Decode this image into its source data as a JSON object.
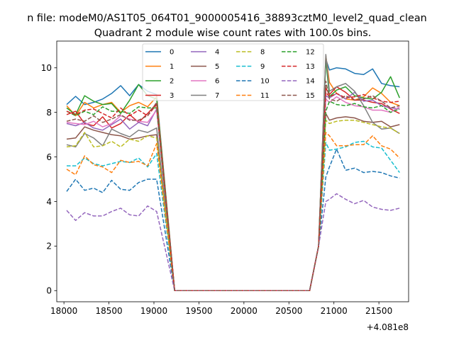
{
  "figure": {
    "suptitle": "n file: modeM0/AS1T05_064T01_9000005416_38893cztM0_level2_quad_clean",
    "title": "Quadrant 2 module wise count rates with 100.0s bins."
  },
  "chart_data": {
    "type": "line",
    "x_offset_label": "+4.081e8",
    "xlim": [
      17920,
      21830
    ],
    "ylim": [
      -0.5,
      11.2
    ],
    "xticks": [
      18000,
      18500,
      19000,
      19500,
      20000,
      20500,
      21000,
      21500
    ],
    "yticks": [
      0,
      2,
      4,
      6,
      8,
      10
    ],
    "grid": false,
    "legend": {
      "placement": "top-center",
      "columns": 4
    },
    "x": [
      18030,
      18130,
      18230,
      18330,
      18430,
      18530,
      18630,
      18730,
      18830,
      18930,
      19030,
      19230,
      20730,
      20830,
      20910,
      20950,
      21030,
      21130,
      21230,
      21330,
      21430,
      21530,
      21630,
      21730
    ],
    "series": [
      {
        "name": "0",
        "color": "#1f77b4",
        "dash": false,
        "values": [
          8.35,
          8.72,
          8.35,
          8.45,
          8.6,
          8.85,
          9.2,
          8.75,
          9.25,
          8.95,
          8.8,
          0,
          0,
          2.0,
          10.4,
          9.9,
          10.0,
          9.95,
          9.75,
          9.7,
          9.95,
          9.3,
          9.2,
          9.15
        ]
      },
      {
        "name": "1",
        "color": "#ff7f0e",
        "dash": false,
        "values": [
          8.3,
          7.85,
          8.45,
          8.2,
          8.35,
          8.45,
          8.0,
          8.3,
          8.45,
          8.25,
          8.7,
          0,
          0,
          2.0,
          10.55,
          9.35,
          8.85,
          8.6,
          8.55,
          8.7,
          9.1,
          8.85,
          8.45,
          8.3
        ]
      },
      {
        "name": "2",
        "color": "#2ca02c",
        "dash": false,
        "values": [
          8.2,
          7.9,
          8.75,
          8.5,
          8.35,
          8.4,
          7.95,
          8.55,
          9.25,
          8.75,
          8.6,
          0,
          0,
          2.0,
          10.4,
          8.7,
          9.0,
          9.15,
          8.75,
          8.65,
          8.6,
          8.9,
          9.6,
          8.65
        ]
      },
      {
        "name": "3",
        "color": "#d62728",
        "dash": false,
        "values": [
          7.9,
          8.05,
          7.5,
          7.4,
          7.8,
          7.3,
          7.5,
          7.9,
          7.55,
          7.95,
          8.4,
          0,
          0,
          2.0,
          9.1,
          8.8,
          9.15,
          8.9,
          8.55,
          8.55,
          8.45,
          8.4,
          8.15,
          7.95
        ]
      },
      {
        "name": "4",
        "color": "#9467bd",
        "dash": false,
        "values": [
          7.5,
          7.4,
          7.55,
          7.3,
          7.2,
          7.45,
          7.7,
          7.25,
          7.55,
          7.4,
          8.15,
          0,
          0,
          2.0,
          8.75,
          8.65,
          8.85,
          8.6,
          8.9,
          8.5,
          8.55,
          8.3,
          8.2,
          8.15
        ]
      },
      {
        "name": "5",
        "color": "#8c564b",
        "dash": false,
        "values": [
          6.8,
          6.85,
          7.35,
          7.2,
          7.1,
          7.0,
          6.95,
          6.8,
          6.85,
          6.95,
          7.0,
          0,
          0,
          2.0,
          7.95,
          7.65,
          7.75,
          7.8,
          7.75,
          7.6,
          7.55,
          7.6,
          7.35,
          7.45
        ]
      },
      {
        "name": "6",
        "color": "#e377c2",
        "dash": false,
        "values": [
          7.55,
          7.5,
          7.45,
          7.6,
          7.35,
          7.5,
          7.85,
          7.7,
          7.6,
          7.55,
          8.1,
          0,
          0,
          2.0,
          8.6,
          8.45,
          8.7,
          8.45,
          8.3,
          8.25,
          8.1,
          8.1,
          8.0,
          8.25
        ]
      },
      {
        "name": "7",
        "color": "#7f7f7f",
        "dash": false,
        "values": [
          6.55,
          6.45,
          7.05,
          6.85,
          6.5,
          7.25,
          7.05,
          6.9,
          7.2,
          7.1,
          7.3,
          0,
          0,
          2.0,
          10.6,
          8.95,
          9.15,
          9.3,
          8.95,
          8.3,
          7.55,
          7.25,
          7.3,
          7.05
        ]
      },
      {
        "name": "8",
        "color": "#bcbd22",
        "dash": true,
        "values": [
          6.45,
          6.5,
          7.1,
          6.45,
          6.5,
          6.7,
          6.45,
          6.8,
          6.7,
          6.95,
          6.85,
          0,
          0,
          2.0,
          7.65,
          7.5,
          7.6,
          7.65,
          7.65,
          7.55,
          7.45,
          7.35,
          7.3,
          7.05
        ]
      },
      {
        "name": "9",
        "color": "#17becf",
        "dash": true,
        "values": [
          5.6,
          5.6,
          5.95,
          5.7,
          5.6,
          5.7,
          5.8,
          5.75,
          5.95,
          5.55,
          6.15,
          0,
          0,
          2.0,
          6.65,
          6.3,
          6.35,
          6.45,
          6.65,
          6.7,
          6.45,
          6.4,
          5.85,
          5.3
        ]
      },
      {
        "name": "10",
        "color": "#1f77b4",
        "dash": true,
        "values": [
          4.45,
          5.0,
          4.5,
          4.6,
          4.4,
          4.95,
          4.55,
          4.5,
          4.85,
          5.0,
          5.0,
          0,
          0,
          2.0,
          5.1,
          5.55,
          6.35,
          5.4,
          5.5,
          5.3,
          5.35,
          5.3,
          5.15,
          5.05
        ]
      },
      {
        "name": "11",
        "color": "#ff7f0e",
        "dash": true,
        "values": [
          5.45,
          5.2,
          6.05,
          5.65,
          5.55,
          5.3,
          5.85,
          5.75,
          5.8,
          5.6,
          6.6,
          0,
          0,
          2.0,
          7.1,
          6.95,
          6.5,
          6.5,
          6.55,
          6.55,
          6.95,
          6.5,
          6.35,
          5.95
        ]
      },
      {
        "name": "12",
        "color": "#2ca02c",
        "dash": true,
        "values": [
          8.05,
          7.85,
          8.05,
          7.9,
          8.25,
          8.05,
          8.05,
          7.95,
          8.25,
          8.2,
          8.2,
          0,
          0,
          2.0,
          8.05,
          8.5,
          8.35,
          8.3,
          8.4,
          8.25,
          8.2,
          8.3,
          8.0,
          8.15
        ]
      },
      {
        "name": "13",
        "color": "#d62728",
        "dash": true,
        "values": [
          8.05,
          7.9,
          8.1,
          8.15,
          7.95,
          7.75,
          8.2,
          7.85,
          8.1,
          7.85,
          8.35,
          0,
          0,
          2.0,
          8.9,
          8.7,
          8.85,
          8.65,
          8.7,
          8.8,
          8.65,
          8.5,
          8.45,
          8.5
        ]
      },
      {
        "name": "14",
        "color": "#9467bd",
        "dash": true,
        "values": [
          3.6,
          3.15,
          3.5,
          3.35,
          3.35,
          3.55,
          3.7,
          3.4,
          3.35,
          3.8,
          3.55,
          0,
          0,
          2.0,
          4.0,
          4.1,
          4.35,
          4.1,
          3.9,
          4.05,
          3.75,
          3.65,
          3.6,
          3.7
        ]
      },
      {
        "name": "15",
        "color": "#8c564b",
        "dash": true,
        "values": [
          7.6,
          7.7,
          7.6,
          7.85,
          7.55,
          7.7,
          7.9,
          7.65,
          7.65,
          7.85,
          8.45,
          0,
          0,
          2.0,
          9.4,
          8.6,
          8.5,
          8.75,
          8.55,
          8.6,
          8.75,
          8.5,
          8.2,
          8.3
        ]
      }
    ]
  }
}
